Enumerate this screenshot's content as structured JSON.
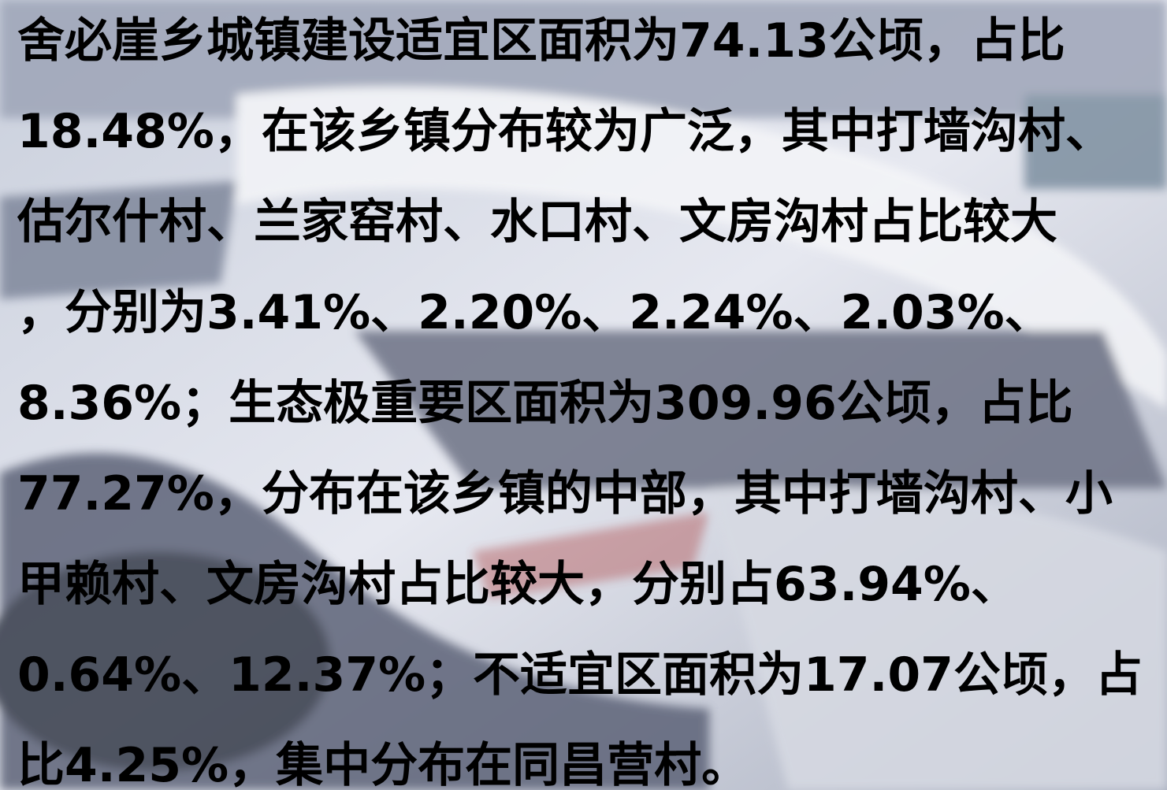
{
  "lines": [
    "舍必崖乡城镇建设适宜区面积为74.13公顷，占比",
    "18.48%，在该乡镇分布较为广泛，其中打墙沟村、",
    "估尔什村、兰家窑村、水口村、文房沟村占比较大",
    "，分别为3.41%、2.20%、2.24%、2.03%、",
    "8.36%；生态极重要区面积为309.96公顷，占比",
    "77.27%，分布在该乡镇的中部，其中打墙沟村、小",
    "甲赖村、文房沟村占比较大，分别占63.94%、",
    "0.64%、12.37%；不适宜区面积为17.07公顷，占",
    "比4.25%，集中分布在同昌营村。"
  ]
}
